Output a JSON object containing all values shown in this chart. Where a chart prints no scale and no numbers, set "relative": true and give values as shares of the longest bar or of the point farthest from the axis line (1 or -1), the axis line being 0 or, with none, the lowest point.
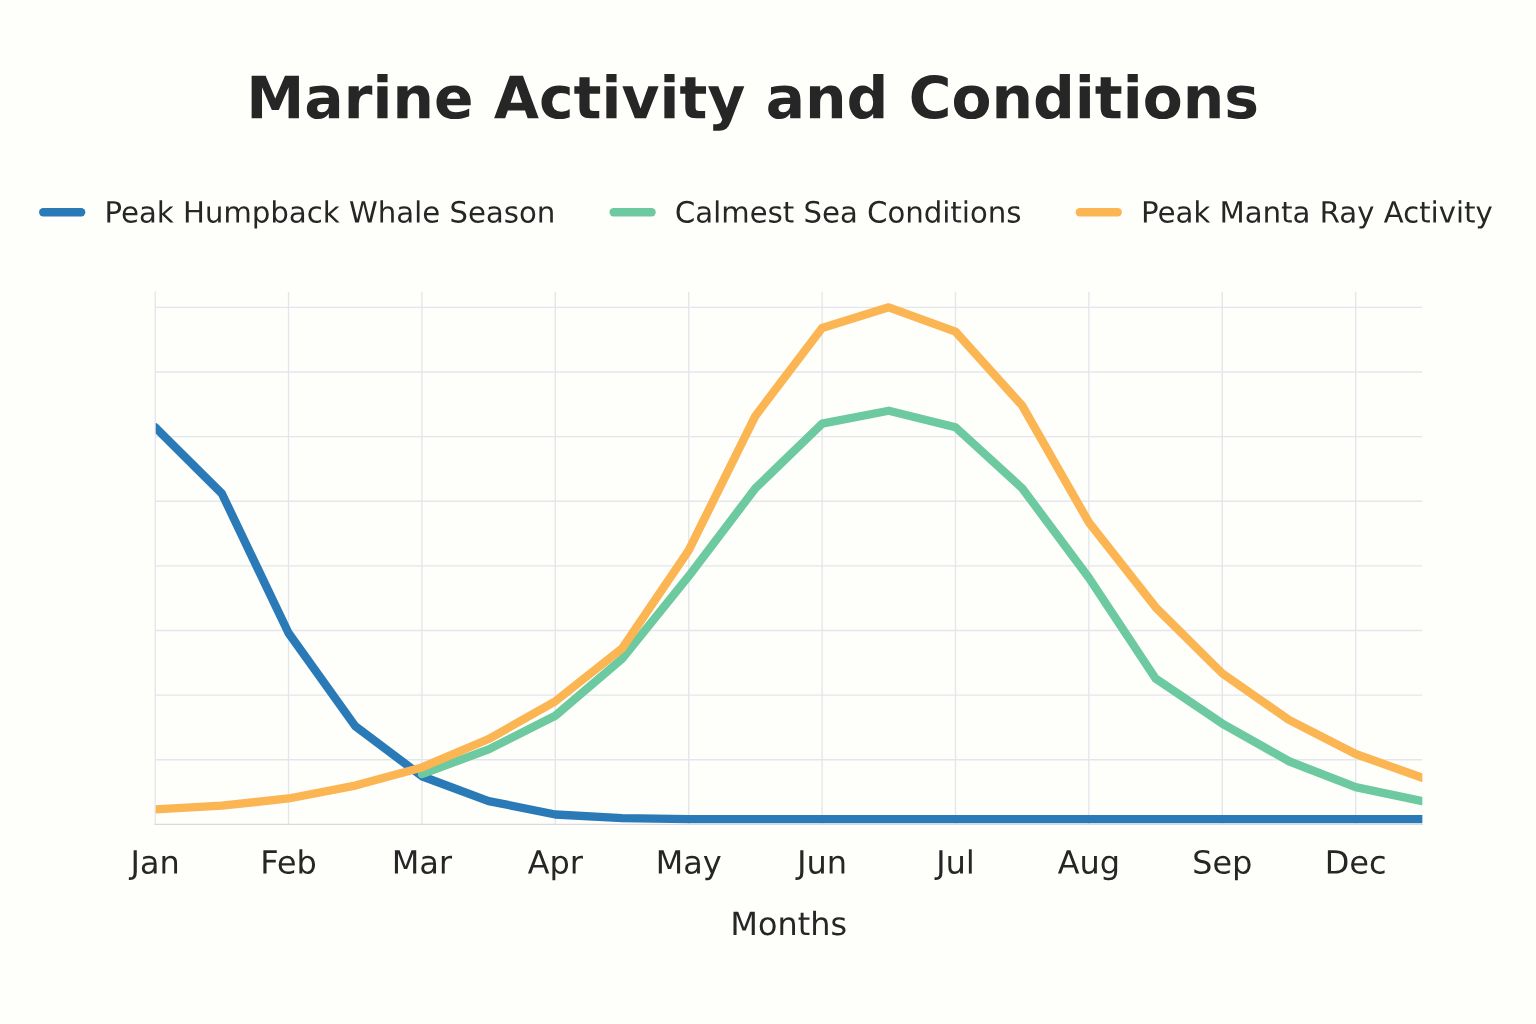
{
  "chart_data": {
    "type": "line",
    "title": "Marine Activity and Conditions",
    "xlabel": "Months",
    "relative": true,
    "categories": [
      "Jan",
      null,
      "Feb",
      null,
      "Mar",
      null,
      "Apr",
      null,
      "May",
      null,
      "Jun",
      null,
      "Jul",
      null,
      "Aug",
      null,
      "Sep",
      null,
      "Dec",
      null
    ],
    "tick_labels": "x",
    "grid": true,
    "legend": "top",
    "marker": "none",
    "line_style": "solid",
    "series": [
      {
        "name": "Peak Humpback Whale Season",
        "color": "#2a7ab8",
        "values": [
          0.768,
          0.64,
          0.37,
          0.19,
          0.093,
          0.045,
          0.019,
          0.012,
          0.01,
          0.01,
          0.01,
          0.01,
          0.01,
          0.01,
          0.01,
          0.01,
          0.01,
          0.01,
          0.01,
          0.01
        ]
      },
      {
        "name": "Calmest Sea Conditions",
        "color": "#6cc9a0",
        "values": [
          null,
          null,
          null,
          null,
          0.097,
          0.145,
          0.21,
          0.32,
          0.48,
          0.65,
          0.775,
          0.8,
          0.768,
          0.65,
          0.477,
          0.282,
          0.195,
          0.122,
          0.072,
          0.045
        ]
      },
      {
        "name": "Peak Manta Ray Activity",
        "color": "#fbb552",
        "values": [
          0.029,
          0.036,
          0.05,
          0.075,
          0.11,
          0.165,
          0.238,
          0.34,
          0.53,
          0.79,
          0.96,
          1.0,
          0.953,
          0.81,
          0.584,
          0.42,
          0.292,
          0.202,
          0.136,
          0.09
        ]
      }
    ]
  }
}
